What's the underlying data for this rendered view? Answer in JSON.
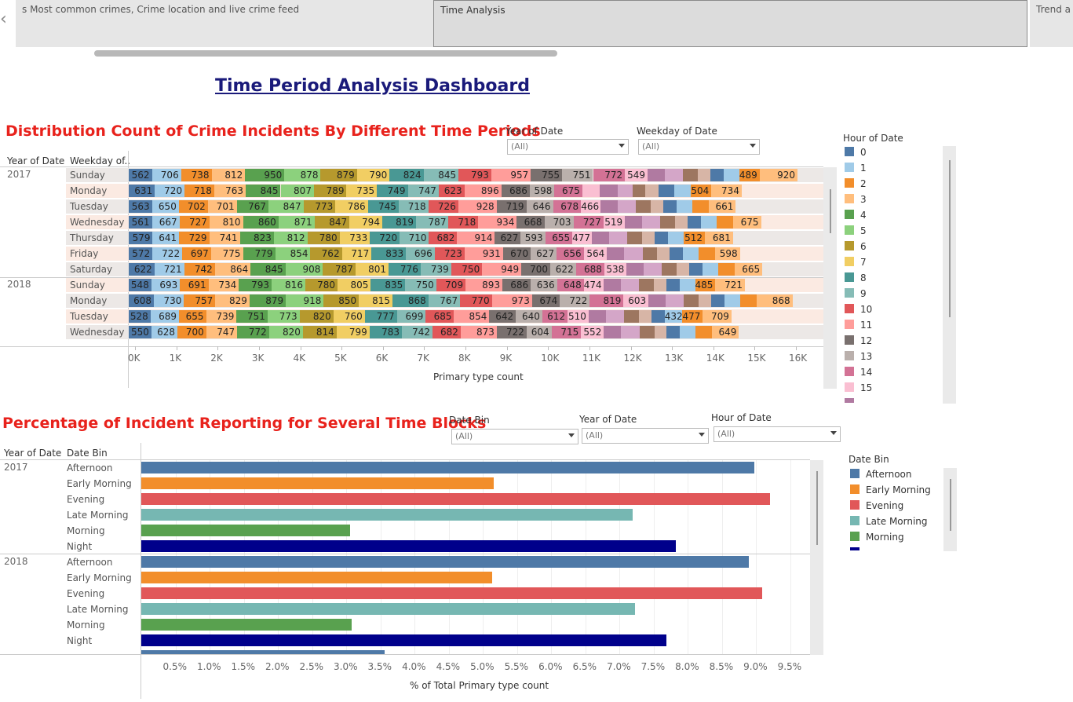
{
  "tabs": {
    "tab1_label": "s Most common crimes, Crime location and live crime feed",
    "tab2_label": "Time Analysis",
    "tab3_label": "Trend a"
  },
  "dashboard_title": "Time Period Analysis Dashboard",
  "icons": {
    "back": "chevron-left-icon",
    "dropdown": "dropdown-arrow-icon"
  },
  "sheet1": {
    "title": "Distribution Count of Crime Incidents By Different Time Periods",
    "filter_year": {
      "label": "Year of Date",
      "value": "(All)"
    },
    "filter_weekday": {
      "label": "Weekday of Date",
      "value": "(All)"
    },
    "col_header_year": "Year of Date",
    "col_header_weekday": "Weekday of..",
    "legend_title": "Hour of Date",
    "legend_items": [
      "0",
      "1",
      "2",
      "3",
      "4",
      "5",
      "6",
      "7",
      "8",
      "9",
      "10",
      "11",
      "12",
      "13",
      "14",
      "15"
    ],
    "x_axis_title": "Primary type count",
    "x_ticks": [
      "0K",
      "1K",
      "2K",
      "3K",
      "4K",
      "5K",
      "6K",
      "7K",
      "8K",
      "9K",
      "10K",
      "11K",
      "12K",
      "13K",
      "14K",
      "15K",
      "16K"
    ]
  },
  "sheet2": {
    "title": "Percentage of Incident Reporting for Several Time Blocks",
    "filter_datebin": {
      "label": "Date Bin",
      "value": "(All)"
    },
    "filter_year": {
      "label": "Year of Date",
      "value": "(All)"
    },
    "filter_hour": {
      "label": "Hour of Date",
      "value": "(All)"
    },
    "col_header_year": "Year of Date",
    "col_header_datebin": "Date Bin",
    "legend_title": "Date Bin",
    "legend_items": [
      "Afternoon",
      "Early Morning",
      "Evening",
      "Late Morning",
      "Morning"
    ],
    "x_axis_title": "% of Total Primary type count",
    "x_ticks": [
      "0.5%",
      "1.0%",
      "1.5%",
      "2.0%",
      "2.5%",
      "3.0%",
      "3.5%",
      "4.0%",
      "4.5%",
      "5.0%",
      "5.5%",
      "6.0%",
      "6.5%",
      "7.0%",
      "7.5%",
      "8.0%",
      "8.5%",
      "9.0%",
      "9.5%"
    ]
  },
  "colors": {
    "hours": [
      "#4e79a7",
      "#a0cbe8",
      "#f28e2b",
      "#ffbe7d",
      "#59a14f",
      "#8cd17d",
      "#b6992d",
      "#f1ce63",
      "#499894",
      "#86bcb6",
      "#e15759",
      "#ff9d9a",
      "#79706e",
      "#bab0ac",
      "#d37295",
      "#fabfd2",
      "#b07aa1",
      "#d4a6c8",
      "#9d7660",
      "#d7b5a6",
      "#4e79a7",
      "#a0cbe8",
      "#f28e2b",
      "#ffbe7d"
    ],
    "bins": {
      "Afternoon": "#4e79a7",
      "Early Morning": "#f28e2b",
      "Evening": "#e15759",
      "Late Morning": "#76b7b2",
      "Morning": "#59a14f",
      "Night": "#00008b"
    }
  },
  "chart_data": [
    {
      "type": "bar",
      "stacked": true,
      "orientation": "horizontal",
      "xlabel": "Primary type count",
      "xlim": [
        0,
        16000
      ],
      "rows": [
        {
          "year": "2017",
          "weekday": "Sunday",
          "labels": [
            562,
            706,
            738,
            812,
            950,
            878,
            879,
            790,
            824,
            845,
            793,
            957,
            755,
            751,
            772,
            549,
            "",
            "",
            "",
            "",
            "",
            "",
            489,
            920
          ]
        },
        {
          "year": "",
          "weekday": "Monday",
          "labels": [
            631,
            720,
            718,
            763,
            845,
            807,
            789,
            735,
            749,
            747,
            623,
            896,
            686,
            598,
            675,
            "",
            "",
            "",
            "",
            "",
            "",
            "",
            504,
            734
          ]
        },
        {
          "year": "",
          "weekday": "Tuesday",
          "labels": [
            563,
            650,
            702,
            701,
            767,
            847,
            773,
            786,
            745,
            718,
            726,
            928,
            719,
            646,
            678,
            466,
            "",
            "",
            "",
            "",
            "",
            "",
            "",
            661
          ]
        },
        {
          "year": "",
          "weekday": "Wednesday",
          "labels": [
            561,
            667,
            727,
            810,
            860,
            871,
            847,
            794,
            819,
            787,
            718,
            934,
            668,
            703,
            727,
            519,
            "",
            "",
            "",
            "",
            "",
            "",
            "",
            675
          ]
        },
        {
          "year": "",
          "weekday": "Thursday",
          "labels": [
            579,
            641,
            729,
            741,
            823,
            812,
            780,
            733,
            720,
            710,
            682,
            914,
            627,
            593,
            655,
            477,
            "",
            "",
            "",
            "",
            "",
            "",
            512,
            681
          ]
        },
        {
          "year": "",
          "weekday": "Friday",
          "labels": [
            572,
            722,
            697,
            775,
            779,
            854,
            762,
            717,
            833,
            696,
            723,
            931,
            670,
            627,
            656,
            564,
            "",
            "",
            "",
            "",
            "",
            "",
            "",
            598
          ]
        },
        {
          "year": "",
          "weekday": "Saturday",
          "labels": [
            622,
            721,
            742,
            864,
            845,
            908,
            787,
            801,
            776,
            739,
            750,
            949,
            700,
            622,
            688,
            538,
            "",
            "",
            "",
            "",
            "",
            "",
            "",
            665
          ]
        },
        {
          "year": "2018",
          "weekday": "Sunday",
          "labels": [
            548,
            693,
            691,
            734,
            793,
            816,
            780,
            805,
            835,
            750,
            709,
            893,
            686,
            636,
            648,
            474,
            "",
            "",
            "",
            "",
            "",
            "",
            485,
            721
          ]
        },
        {
          "year": "",
          "weekday": "Monday",
          "labels": [
            608,
            730,
            757,
            829,
            879,
            918,
            850,
            815,
            868,
            767,
            770,
            973,
            674,
            722,
            819,
            603,
            "",
            "",
            "",
            "",
            "",
            "",
            "",
            868
          ]
        },
        {
          "year": "",
          "weekday": "Tuesday",
          "labels": [
            528,
            689,
            655,
            739,
            751,
            773,
            820,
            760,
            777,
            699,
            685,
            854,
            642,
            640,
            612,
            510,
            "",
            "",
            "",
            "",
            "",
            432,
            477,
            709
          ]
        },
        {
          "year": "",
          "weekday": "Wednesday",
          "labels": [
            550,
            628,
            700,
            747,
            772,
            820,
            814,
            799,
            783,
            742,
            682,
            873,
            722,
            604,
            715,
            552,
            "",
            "",
            "",
            "",
            "",
            "",
            "",
            649
          ]
        }
      ]
    },
    {
      "type": "bar",
      "orientation": "horizontal",
      "xlabel": "% of Total Primary type count",
      "xlim": [
        0,
        9.7
      ],
      "rows": [
        {
          "year": "2017",
          "bin": "Afternoon",
          "value": 8.97
        },
        {
          "year": "",
          "bin": "Early Morning",
          "value": 5.16
        },
        {
          "year": "",
          "bin": "Evening",
          "value": 9.21
        },
        {
          "year": "",
          "bin": "Late Morning",
          "value": 7.19
        },
        {
          "year": "",
          "bin": "Morning",
          "value": 3.06
        },
        {
          "year": "",
          "bin": "Night",
          "value": 7.83
        },
        {
          "year": "2018",
          "bin": "Afternoon",
          "value": 8.89
        },
        {
          "year": "",
          "bin": "Early Morning",
          "value": 5.14
        },
        {
          "year": "",
          "bin": "Evening",
          "value": 9.09
        },
        {
          "year": "",
          "bin": "Late Morning",
          "value": 7.23
        },
        {
          "year": "",
          "bin": "Morning",
          "value": 3.08
        },
        {
          "year": "",
          "bin": "Night",
          "value": 7.69
        }
      ]
    }
  ]
}
